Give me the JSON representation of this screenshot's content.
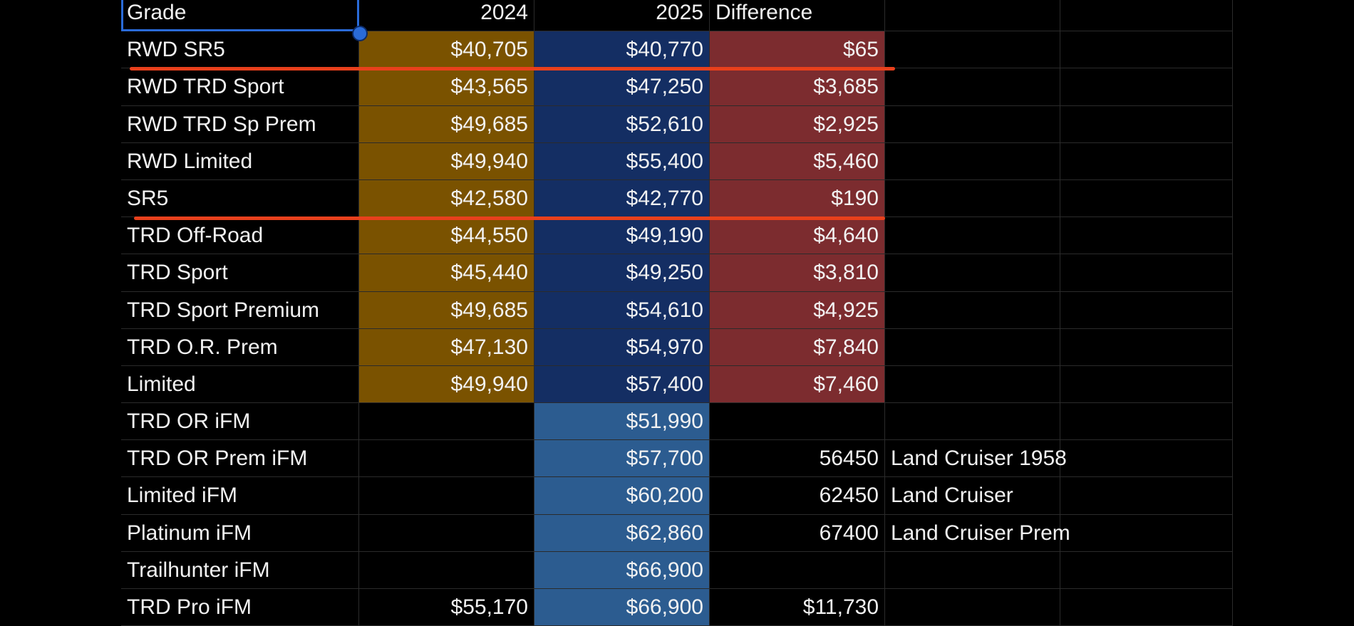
{
  "columns": {
    "grade": "Grade",
    "year_2024": "2024",
    "year_2025": "2025",
    "difference": "Difference"
  },
  "rows": [
    {
      "grade": "RWD SR5",
      "y2024": "$40,705",
      "y2025": "$40,770",
      "diff": "$65",
      "note": ""
    },
    {
      "grade": "RWD TRD Sport",
      "y2024": "$43,565",
      "y2025": "$47,250",
      "diff": "$3,685",
      "note": ""
    },
    {
      "grade": "RWD TRD Sp Prem",
      "y2024": "$49,685",
      "y2025": "$52,610",
      "diff": "$2,925",
      "note": ""
    },
    {
      "grade": "RWD Limited",
      "y2024": "$49,940",
      "y2025": "$55,400",
      "diff": "$5,460",
      "note": ""
    },
    {
      "grade": "SR5",
      "y2024": "$42,580",
      "y2025": "$42,770",
      "diff": "$190",
      "note": ""
    },
    {
      "grade": "TRD Off-Road",
      "y2024": "$44,550",
      "y2025": "$49,190",
      "diff": "$4,640",
      "note": ""
    },
    {
      "grade": "TRD Sport",
      "y2024": "$45,440",
      "y2025": "$49,250",
      "diff": "$3,810",
      "note": ""
    },
    {
      "grade": "TRD Sport Premium",
      "y2024": "$49,685",
      "y2025": "$54,610",
      "diff": "$4,925",
      "note": ""
    },
    {
      "grade": "TRD O.R. Prem",
      "y2024": "$47,130",
      "y2025": "$54,970",
      "diff": "$7,840",
      "note": ""
    },
    {
      "grade": "Limited",
      "y2024": "$49,940",
      "y2025": "$57,400",
      "diff": "$7,460",
      "note": ""
    },
    {
      "grade": "TRD OR iFM",
      "y2024": "",
      "y2025": "$51,990",
      "diff": "",
      "note": ""
    },
    {
      "grade": "TRD OR Prem iFM",
      "y2024": "",
      "y2025": "$57,700",
      "diff": "56450",
      "note": "Land Cruiser 1958"
    },
    {
      "grade": "Limited iFM",
      "y2024": "",
      "y2025": "$60,200",
      "diff": "62450",
      "note": "Land Cruiser"
    },
    {
      "grade": "Platinum iFM",
      "y2024": "",
      "y2025": "$62,860",
      "diff": "67400",
      "note": "Land Cruiser Prem"
    },
    {
      "grade": "Trailhunter iFM",
      "y2024": "",
      "y2025": "$66,900",
      "diff": "",
      "note": ""
    },
    {
      "grade": "TRD Pro iFM",
      "y2024": "$55,170",
      "y2025": "$66,900",
      "diff": "$11,730",
      "note": ""
    }
  ],
  "colors": {
    "col_2024_fill": "#7a5200",
    "col_2025_fill_a": "#142e63",
    "col_2025_fill_b": "#2c5c90",
    "difference_fill": "#7c2c2f",
    "annotation_line": "#e8401c",
    "selection_border": "#2a6bd8"
  }
}
